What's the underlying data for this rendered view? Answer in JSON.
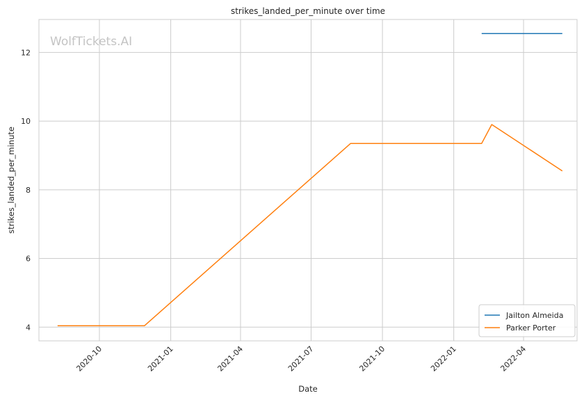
{
  "chart_data": {
    "type": "line",
    "title": "strikes_landed_per_minute over time",
    "xlabel": "Date",
    "ylabel": "strikes_landed_per_minute",
    "watermark": "WolfTickets.AI",
    "x_ticks": [
      "2020-10",
      "2021-01",
      "2021-04",
      "2021-07",
      "2021-10",
      "2022-01",
      "2022-04"
    ],
    "y_ticks": [
      4,
      6,
      8,
      10,
      12
    ],
    "xlim": [
      "2020-07-15",
      "2022-06-09"
    ],
    "ylim": [
      3.6,
      12.96
    ],
    "grid": true,
    "legend_position": "bottom-right",
    "series": [
      {
        "name": "Jailton Almeida",
        "color": "#1f77b4",
        "points": [
          {
            "x": "2022-02-06",
            "y": 12.55
          },
          {
            "x": "2022-05-21",
            "y": 12.55
          }
        ]
      },
      {
        "name": "Parker Porter",
        "color": "#ff7f0e",
        "points": [
          {
            "x": "2020-08-08",
            "y": 4.04
          },
          {
            "x": "2020-11-28",
            "y": 4.04
          },
          {
            "x": "2021-08-21",
            "y": 9.35
          },
          {
            "x": "2022-02-06",
            "y": 9.35
          },
          {
            "x": "2022-02-19",
            "y": 9.9
          },
          {
            "x": "2022-05-21",
            "y": 8.55
          }
        ]
      }
    ]
  }
}
